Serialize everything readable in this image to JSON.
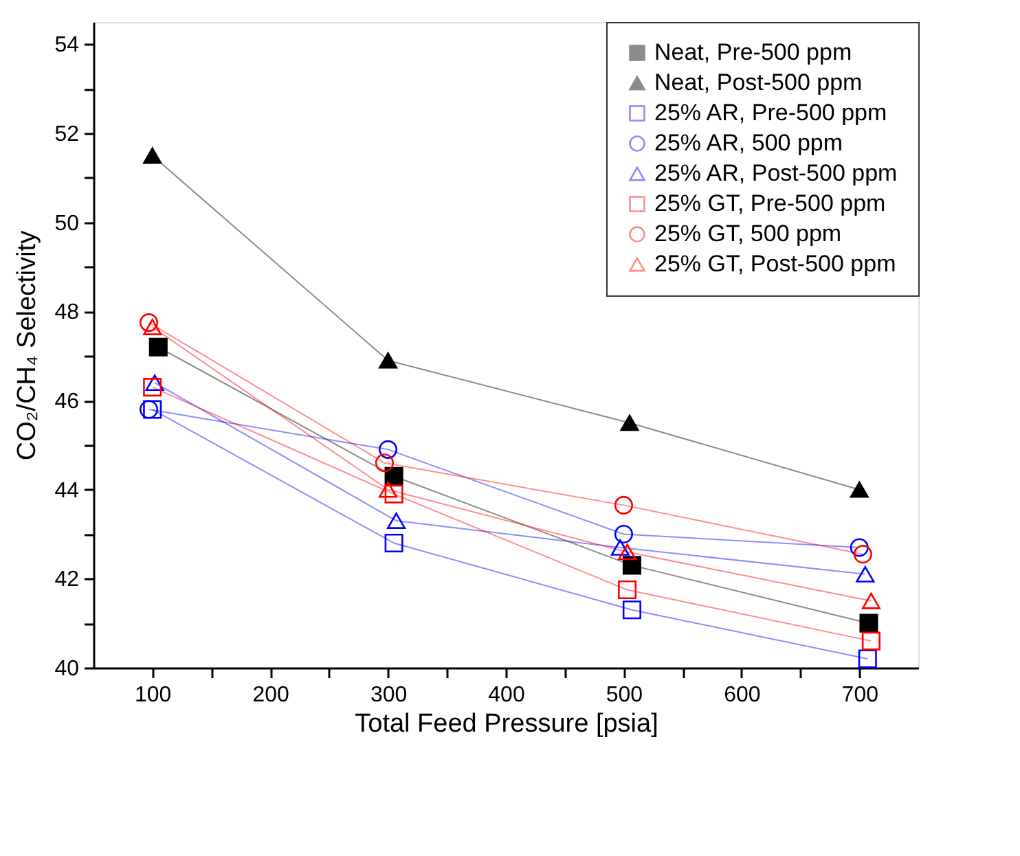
{
  "chart_data": {
    "type": "line",
    "xlabel": "Total Feed Pressure [psia]",
    "ylabel": "CO₂/CH₄ Selectivity",
    "xlim": [
      50,
      750
    ],
    "ylim": [
      40,
      54.5
    ],
    "xticks": [
      100,
      {
        "value": 150,
        "label": null
      },
      200,
      {
        "value": 250,
        "label": null
      },
      300,
      {
        "value": 350,
        "label": null
      },
      400,
      {
        "value": 450,
        "label": null
      },
      500,
      {
        "value": 550,
        "label": null
      },
      600,
      {
        "value": 650,
        "label": null
      },
      700
    ],
    "yticks": [
      40,
      {
        "value": 41,
        "label": null
      },
      42,
      {
        "value": 43,
        "label": null
      },
      44,
      {
        "value": 45,
        "label": null
      },
      46,
      {
        "value": 47,
        "label": null
      },
      48,
      {
        "value": 49,
        "label": null
      },
      50,
      {
        "value": 51,
        "label": null
      },
      52,
      {
        "value": 53,
        "label": null
      },
      54
    ],
    "grid": false,
    "legend": "top right",
    "series": [
      {
        "name": "Neat, Pre-500 ppm",
        "color": "#000000",
        "marker": "square",
        "x": [
          105,
          305,
          507,
          708
        ],
        "values": [
          47.2,
          44.3,
          42.3,
          41.0
        ]
      },
      {
        "name": "Neat, Post-500 ppm",
        "color": "#000000",
        "marker": "triangle",
        "x": [
          100,
          300,
          505,
          700
        ],
        "values": [
          51.5,
          46.9,
          45.5,
          44.0
        ]
      },
      {
        "name": "25% AR, Pre-500 ppm",
        "color": "#0000ff",
        "marker": "square",
        "x": [
          100,
          305,
          507,
          707
        ],
        "values": [
          45.8,
          42.8,
          41.3,
          40.2
        ]
      },
      {
        "name": "25% AR, 500 ppm",
        "color": "#0000ff",
        "marker": "circle",
        "x": [
          97,
          300,
          500,
          700
        ],
        "values": [
          45.8,
          44.9,
          43.0,
          42.7
        ]
      },
      {
        "name": "25% AR, Post-500 ppm",
        "color": "#0000ff",
        "marker": "triangle",
        "x": [
          102,
          307,
          497,
          705
        ],
        "values": [
          46.4,
          43.3,
          42.7,
          42.1
        ]
      },
      {
        "name": "25% GT, Pre-500 ppm",
        "color": "#ff0000",
        "marker": "square",
        "x": [
          100,
          305,
          503,
          710
        ],
        "values": [
          46.3,
          43.9,
          41.75,
          40.6
        ]
      },
      {
        "name": "25% GT, 500 ppm",
        "color": "#ff0000",
        "marker": "circle",
        "x": [
          97,
          297,
          500,
          703
        ],
        "values": [
          47.75,
          44.6,
          43.65,
          42.55
        ]
      },
      {
        "name": "25% GT, Post-500 ppm",
        "color": "#ff0000",
        "marker": "triangle",
        "x": [
          100,
          300,
          503,
          710
        ],
        "values": [
          47.65,
          44.0,
          42.6,
          41.5
        ]
      }
    ]
  }
}
